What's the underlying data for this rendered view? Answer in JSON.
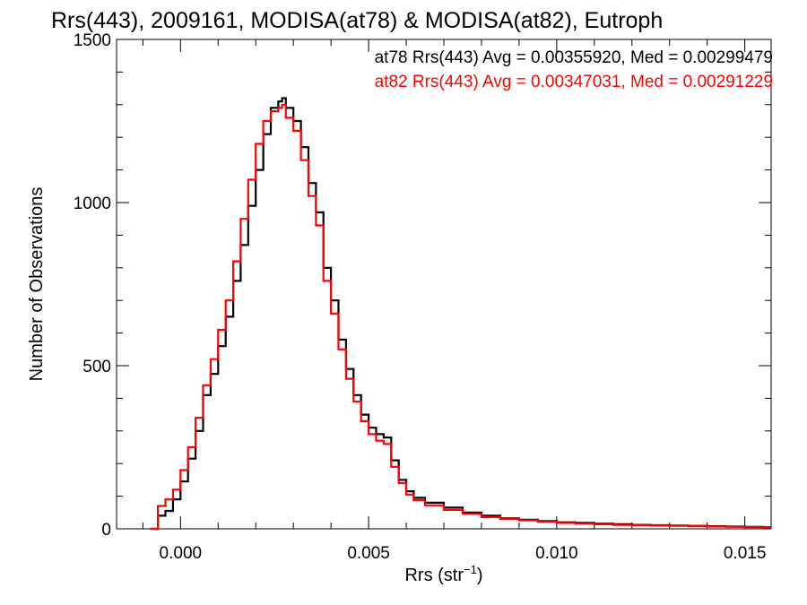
{
  "chart_data": {
    "type": "line",
    "title": "Rrs(443), 2009161, MODISA(at78) & MODISA(at82), Eutroph",
    "xlabel": "Rrs (str",
    "xlabel_sup": "−1",
    "xlabel_close": ")",
    "ylabel": "Number of Observations",
    "xlim": [
      -0.0017,
      0.0157
    ],
    "ylim": [
      0,
      1500
    ],
    "x_ticks": [
      0.0,
      0.005,
      0.01,
      0.015
    ],
    "x_tick_labels": [
      "0.000",
      "0.005",
      "0.010",
      "0.015"
    ],
    "y_ticks": [
      0,
      500,
      1000,
      1500
    ],
    "y_tick_labels": [
      "0",
      "500",
      "1000",
      "1500"
    ],
    "legend_placement": "top-right",
    "grid": false,
    "series": [
      {
        "name": "at78 Rrs(443) Avg = 0.00355920, Med = 0.00299479",
        "color": "#000000",
        "x": [
          -0.0008,
          -0.0006,
          -0.0004,
          -0.0002,
          0.0,
          0.0002,
          0.0004,
          0.0006,
          0.0008,
          0.001,
          0.0012,
          0.0014,
          0.0016,
          0.0018,
          0.002,
          0.0022,
          0.0024,
          0.0026,
          0.0027,
          0.0028,
          0.003,
          0.0032,
          0.0034,
          0.0036,
          0.0038,
          0.004,
          0.0042,
          0.0044,
          0.0046,
          0.0048,
          0.005,
          0.0052,
          0.0054,
          0.0056,
          0.0058,
          0.006,
          0.0062,
          0.0065,
          0.007,
          0.0075,
          0.008,
          0.0085,
          0.009,
          0.0095,
          0.01,
          0.0105,
          0.011,
          0.0115,
          0.012,
          0.0125,
          0.013,
          0.0135,
          0.014,
          0.0145,
          0.015,
          0.0155
        ],
        "values": [
          0,
          40,
          55,
          90,
          145,
          215,
          300,
          410,
          475,
          560,
          650,
          760,
          870,
          990,
          1100,
          1210,
          1290,
          1310,
          1320,
          1290,
          1250,
          1170,
          1060,
          970,
          800,
          700,
          580,
          490,
          410,
          350,
          310,
          290,
          280,
          210,
          150,
          115,
          95,
          80,
          65,
          50,
          40,
          32,
          28,
          24,
          20,
          18,
          16,
          14,
          12,
          11,
          10,
          9,
          8,
          7,
          6,
          5
        ]
      },
      {
        "name": "at82 Rrs(443) Avg = 0.00347031, Med = 0.00291229",
        "color": "#ff0000",
        "x": [
          -0.0008,
          -0.0006,
          -0.0004,
          -0.0002,
          0.0,
          0.0002,
          0.0004,
          0.0006,
          0.0008,
          0.001,
          0.0012,
          0.0014,
          0.0016,
          0.0018,
          0.002,
          0.0022,
          0.0024,
          0.0026,
          0.0027,
          0.0028,
          0.003,
          0.0032,
          0.0034,
          0.0036,
          0.0038,
          0.004,
          0.0042,
          0.0044,
          0.0046,
          0.0048,
          0.005,
          0.0052,
          0.0054,
          0.0056,
          0.0058,
          0.006,
          0.0062,
          0.0065,
          0.007,
          0.0075,
          0.008,
          0.0085,
          0.009,
          0.0095,
          0.01,
          0.0105,
          0.011,
          0.0115,
          0.012,
          0.0125,
          0.013,
          0.0135,
          0.014,
          0.0145,
          0.015,
          0.0155
        ],
        "values": [
          0,
          70,
          90,
          120,
          180,
          250,
          340,
          440,
          520,
          610,
          700,
          820,
          950,
          1070,
          1180,
          1250,
          1280,
          1290,
          1300,
          1260,
          1220,
          1130,
          1020,
          930,
          760,
          660,
          550,
          460,
          390,
          330,
          290,
          270,
          260,
          190,
          140,
          105,
          88,
          72,
          58,
          46,
          36,
          30,
          26,
          22,
          18,
          16,
          14,
          12,
          11,
          10,
          9,
          8,
          7,
          6,
          5,
          4
        ]
      }
    ]
  }
}
